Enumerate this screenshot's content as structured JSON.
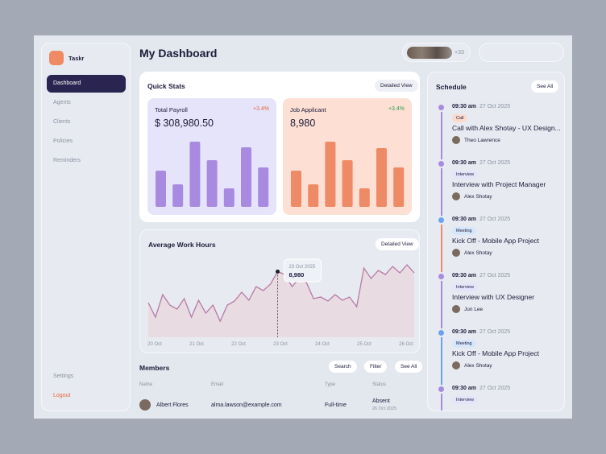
{
  "sidebar": {
    "brand": "Taskr",
    "items": [
      "Dashboard",
      "Agents",
      "Clients",
      "Policies",
      "Reminders"
    ],
    "active": 0,
    "bottom": [
      "Settings",
      "Logout"
    ]
  },
  "header": {
    "title": "My Dashboard",
    "more_members": "+33"
  },
  "quick_stats": {
    "title": "Quick Stats",
    "button": "Detailed View",
    "cards": [
      {
        "label": "Total Payroll",
        "change": "+3.4%",
        "value": "$ 308,980.50",
        "color": "#a88be0",
        "values": [
          45,
          28,
          81,
          58,
          23,
          74,
          49
        ]
      },
      {
        "label": "Job Applicant",
        "change": "+3.4%",
        "value": "8,980",
        "color": "#ee8a66",
        "values": [
          45,
          28,
          81,
          58,
          23,
          73,
          49
        ]
      }
    ],
    "ylim": [
      0,
      100
    ]
  },
  "work_hours": {
    "title": "Average Work Hours",
    "button": "Detailed View",
    "categories": [
      "20 Oct",
      "21 Oct",
      "22 Oct",
      "23 Oct",
      "24 Oct",
      "25 Oct",
      "26 Oct"
    ],
    "values": [
      4730,
      2750,
      5830,
      4400,
      3850,
      5280,
      2750,
      5060,
      3300,
      4400,
      2200,
      4400,
      4950,
      6160,
      5060,
      6930,
      6380,
      7260,
      8980,
      8580,
      6930,
      8030,
      7480,
      5280,
      5500,
      4950,
      5830,
      5060,
      5500,
      4180,
      9460,
      8030,
      9130,
      8580,
      9680,
      8800,
      9900,
      8800
    ],
    "ylim": [
      0,
      10560
    ],
    "tooltip": {
      "date": "23 Oct 2025",
      "value": "8,980",
      "index": 18
    }
  },
  "members": {
    "title": "Members",
    "buttons": [
      "Search",
      "Filter",
      "See All"
    ],
    "columns": [
      "Name",
      "Email",
      "Type",
      "Status"
    ],
    "rows": [
      {
        "name": "Albert Flores",
        "email": "alma.lawson@example.com",
        "type": "Full-time",
        "status": "Absent",
        "date": "26 Oct 2025"
      }
    ]
  },
  "schedule": {
    "title": "Schedule",
    "button": "See All",
    "items": [
      {
        "time": "09:30 am",
        "date": "27 Oct 2025",
        "tag": "Call",
        "title": "Call with Alex Shotay - UX Design...",
        "person": "Theo Lawrence"
      },
      {
        "time": "09:30 am",
        "date": "27 Oct 2025",
        "tag": "Interview",
        "title": "Interview with Project Manager",
        "person": "Alex Shotay"
      },
      {
        "time": "09:30 am",
        "date": "27 Oct 2025",
        "tag": "Meeting",
        "title": "Kick Off - Mobile App Project",
        "person": "Alex Shotay"
      },
      {
        "time": "09:30 am",
        "date": "27 Oct 2025",
        "tag": "Interview",
        "title": "Interview with UX Designer",
        "person": "Jun Lee"
      },
      {
        "time": "09:30 am",
        "date": "27 Oct 2025",
        "tag": "Meeting",
        "title": "Kick Off - Mobile App Project",
        "person": "Alex Shotay"
      },
      {
        "time": "09:30 am",
        "date": "27 Oct 2025",
        "tag": "Interview"
      }
    ]
  }
}
